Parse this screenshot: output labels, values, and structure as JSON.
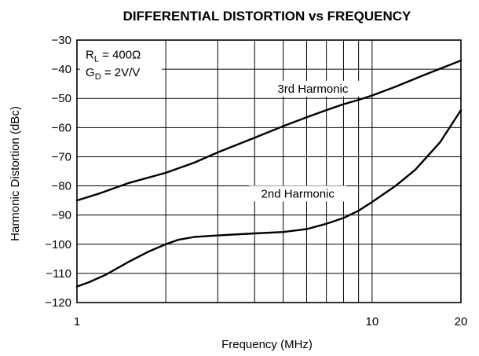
{
  "chart_data": {
    "type": "line",
    "title": "DIFFERENTIAL DISTORTION vs FREQUENCY",
    "xlabel": "Frequency (MHz)",
    "ylabel": "Harmonic Distortion (dBc)",
    "x_scale": "log",
    "xlim": [
      1,
      20
    ],
    "ylim": [
      -120,
      -30
    ],
    "x_tick_labels": [
      {
        "value": 1,
        "label": "1"
      },
      {
        "value": 10,
        "label": "10"
      },
      {
        "value": 20,
        "label": "20"
      }
    ],
    "y_tick_labels": [
      {
        "value": -30,
        "label": "−30"
      },
      {
        "value": -40,
        "label": "−40"
      },
      {
        "value": -50,
        "label": "−50"
      },
      {
        "value": -60,
        "label": "−60"
      },
      {
        "value": -70,
        "label": "−70"
      },
      {
        "value": -80,
        "label": "−80"
      },
      {
        "value": -90,
        "label": "−90"
      },
      {
        "value": -100,
        "label": "−100"
      },
      {
        "value": -110,
        "label": "−110"
      },
      {
        "value": -120,
        "label": "−120"
      }
    ],
    "x_gridlines": [
      2,
      3,
      4,
      5,
      6,
      7,
      8,
      9,
      10
    ],
    "y_gridlines": [
      -40,
      -50,
      -60,
      -70,
      -80,
      -90,
      -100,
      -110
    ],
    "grid": true,
    "line_color": "#000000",
    "series": [
      {
        "label": "3rd Harmonic",
        "label_at": {
          "x": 6.3,
          "y": -48
        },
        "x": [
          1,
          1.2,
          1.5,
          2,
          2.5,
          3,
          4,
          5,
          6,
          7,
          8,
          9,
          10,
          12,
          15,
          20
        ],
        "y": [
          -85,
          -82.5,
          -79,
          -75.5,
          -72,
          -68.5,
          -63.5,
          -59.5,
          -56.5,
          -54,
          -52,
          -50.5,
          -49,
          -46,
          -42,
          -37
        ]
      },
      {
        "label": "2nd Harmonic",
        "label_at": {
          "x": 5.6,
          "y": -84
        },
        "x": [
          1,
          1.1,
          1.25,
          1.5,
          1.75,
          2,
          2.2,
          2.5,
          3,
          4,
          5,
          6,
          7,
          8,
          9,
          10,
          12,
          14,
          17,
          20
        ],
        "y": [
          -114.5,
          -113,
          -110.5,
          -106,
          -102.5,
          -100,
          -98.5,
          -97.5,
          -97,
          -96.3,
          -95.8,
          -94.8,
          -93,
          -91,
          -88.5,
          -85.5,
          -80,
          -74.5,
          -65,
          -54
        ]
      }
    ],
    "annotations": [
      {
        "text": "R",
        "sub": "L",
        "rest": " = 400Ω",
        "at": {
          "x": 1.07,
          "y": -35
        }
      },
      {
        "text": "G",
        "sub": "D",
        "rest": " = 2V/V",
        "at": {
          "x": 1.07,
          "y": -41
        }
      }
    ]
  }
}
